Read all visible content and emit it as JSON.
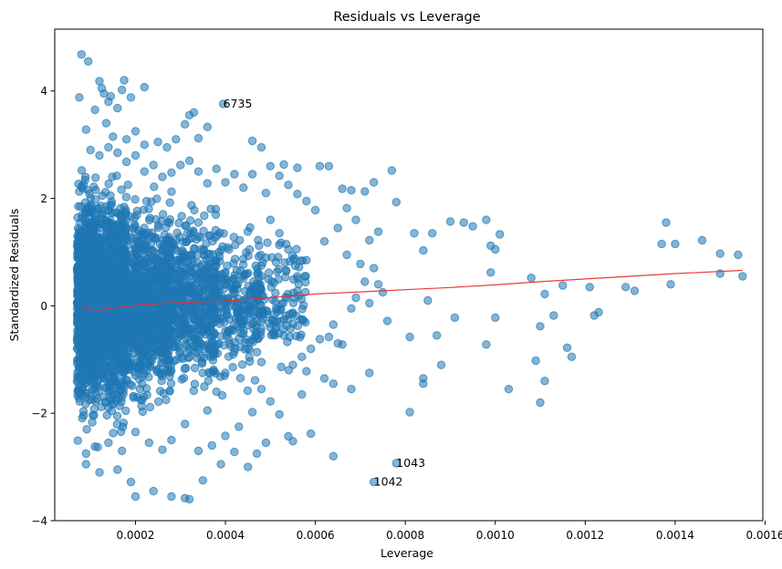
{
  "chart_data": {
    "type": "scatter",
    "title": "Residuals vs Leverage",
    "xlabel": "Leverage",
    "ylabel": "Standardized Residuals",
    "xlim": [
      2.05e-05,
      0.001595
    ],
    "ylim": [
      -4.0,
      5.15
    ],
    "xticks": [
      0.0002,
      0.0004,
      0.0006,
      0.0008,
      0.001,
      0.0012,
      0.0014,
      0.0016
    ],
    "xtick_labels": [
      "0.0002",
      "0.0004",
      "0.0006",
      "0.0008",
      "0.0010",
      "0.0012",
      "0.0014",
      "0.0016"
    ],
    "yticks": [
      -4,
      -2,
      0,
      2,
      4
    ],
    "ytick_labels": [
      "−4",
      "−2",
      "0",
      "2",
      "4"
    ],
    "grid": false,
    "legend": "none",
    "point_color": "#1f77b4",
    "point_alpha": 0.55,
    "line_color": "#e8302f",
    "points": [
      [
        8e-05,
        4.68
      ],
      [
        9.5e-05,
        4.55
      ],
      [
        7.5e-05,
        3.88
      ],
      [
        0.00012,
        4.18
      ],
      [
        0.000125,
        4.05
      ],
      [
        0.00013,
        3.95
      ],
      [
        0.000175,
        4.2
      ],
      [
        0.00017,
        4.02
      ],
      [
        0.00019,
        3.88
      ],
      [
        0.00022,
        4.07
      ],
      [
        0.000145,
        3.9
      ],
      [
        0.00016,
        3.68
      ],
      [
        0.00011,
        3.65
      ],
      [
        0.00014,
        3.8
      ],
      [
        0.000135,
        3.4
      ],
      [
        0.00033,
        3.6
      ],
      [
        0.00032,
        3.55
      ],
      [
        0.00036,
        3.33
      ],
      [
        0.000395,
        3.76
      ],
      [
        0.00034,
        3.12
      ],
      [
        0.00046,
        3.07
      ],
      [
        0.00031,
        3.38
      ],
      [
        0.00025,
        3.05
      ],
      [
        0.00029,
        3.1
      ],
      [
        0.00027,
        2.95
      ],
      [
        0.00022,
        3.0
      ],
      [
        0.00018,
        3.1
      ],
      [
        0.0002,
        3.25
      ],
      [
        0.00015,
        3.15
      ],
      [
        9e-05,
        3.28
      ],
      [
        0.00048,
        2.95
      ],
      [
        0.0005,
        2.6
      ],
      [
        0.00053,
        2.63
      ],
      [
        0.00056,
        2.57
      ],
      [
        0.00061,
        2.6
      ],
      [
        0.00063,
        2.6
      ],
      [
        0.00073,
        2.3
      ],
      [
        0.00077,
        2.52
      ],
      [
        0.00066,
        2.18
      ],
      [
        0.00068,
        2.15
      ],
      [
        0.00071,
        2.13
      ],
      [
        0.00067,
        1.82
      ],
      [
        0.00069,
        1.6
      ],
      [
        0.00074,
        1.38
      ],
      [
        0.00072,
        1.22
      ],
      [
        0.00078,
        1.93
      ],
      [
        0.00082,
        1.35
      ],
      [
        0.00084,
        1.03
      ],
      [
        0.00086,
        1.35
      ],
      [
        0.0009,
        1.57
      ],
      [
        0.00093,
        1.55
      ],
      [
        0.00095,
        1.48
      ],
      [
        0.00098,
        1.6
      ],
      [
        0.00101,
        1.33
      ],
      [
        0.00099,
        1.12
      ],
      [
        0.001,
        1.05
      ],
      [
        0.00099,
        0.62
      ],
      [
        0.00108,
        0.52
      ],
      [
        0.00111,
        0.22
      ],
      [
        0.00115,
        0.38
      ],
      [
        0.00121,
        0.35
      ],
      [
        0.00129,
        0.35
      ],
      [
        0.00131,
        0.28
      ],
      [
        0.00137,
        1.15
      ],
      [
        0.00138,
        1.55
      ],
      [
        0.0014,
        1.15
      ],
      [
        0.00146,
        1.22
      ],
      [
        0.0015,
        0.97
      ],
      [
        0.00154,
        0.95
      ],
      [
        0.00139,
        0.4
      ],
      [
        0.0015,
        0.6
      ],
      [
        0.00155,
        0.55
      ],
      [
        0.00085,
        0.1
      ],
      [
        0.00076,
        -0.28
      ],
      [
        0.00081,
        -0.58
      ],
      [
        0.00087,
        -0.55
      ],
      [
        0.00091,
        -0.22
      ],
      [
        0.001,
        -0.22
      ],
      [
        0.00098,
        -0.72
      ],
      [
        0.00103,
        -1.55
      ],
      [
        0.00109,
        -1.02
      ],
      [
        0.0011,
        -0.38
      ],
      [
        0.00113,
        -0.18
      ],
      [
        0.00116,
        -0.78
      ],
      [
        0.00117,
        -0.95
      ],
      [
        0.00123,
        -0.12
      ],
      [
        0.00122,
        -0.18
      ],
      [
        0.00111,
        -1.4
      ],
      [
        0.0011,
        -1.8
      ],
      [
        0.00084,
        -1.35
      ],
      [
        0.00084,
        -1.45
      ],
      [
        0.00088,
        -1.1
      ],
      [
        0.00081,
        -1.98
      ],
      [
        0.00072,
        -1.25
      ],
      [
        0.00068,
        -1.55
      ],
      [
        0.00064,
        -1.45
      ],
      [
        0.00062,
        -1.35
      ],
      [
        0.00058,
        -1.22
      ],
      [
        0.00057,
        -1.65
      ],
      [
        0.00065,
        -0.7
      ],
      [
        0.00066,
        -0.72
      ],
      [
        0.00063,
        -0.58
      ],
      [
        0.00078,
        -2.93
      ],
      [
        0.00073,
        -3.28
      ],
      [
        0.00064,
        -2.8
      ],
      [
        0.00059,
        -2.38
      ],
      [
        0.00055,
        -2.52
      ],
      [
        0.00054,
        -2.43
      ],
      [
        0.00049,
        -2.55
      ],
      [
        0.00047,
        -2.75
      ],
      [
        0.00045,
        -3.0
      ],
      [
        0.00042,
        -2.72
      ],
      [
        0.00039,
        -2.95
      ],
      [
        0.00035,
        -3.25
      ],
      [
        0.00032,
        -3.6
      ],
      [
        0.00031,
        -3.58
      ],
      [
        0.00028,
        -3.55
      ],
      [
        0.00024,
        -3.45
      ],
      [
        0.0002,
        -3.55
      ],
      [
        0.00019,
        -3.28
      ],
      [
        0.00016,
        -3.05
      ],
      [
        0.00012,
        -3.1
      ],
      [
        9e-05,
        -2.95
      ],
      [
        0.00052,
        -2.02
      ],
      [
        0.0005,
        -1.78
      ],
      [
        0.00048,
        -1.55
      ],
      [
        0.00046,
        -1.98
      ],
      [
        0.00043,
        -2.25
      ],
      [
        0.0004,
        -2.42
      ],
      [
        0.00037,
        -2.6
      ],
      [
        0.00034,
        -2.7
      ],
      [
        0.00031,
        -2.2
      ],
      [
        0.00028,
        -2.5
      ],
      [
        0.00026,
        -2.68
      ],
      [
        0.00023,
        -2.55
      ],
      [
        0.0002,
        -2.35
      ],
      [
        0.00017,
        -2.7
      ],
      [
        0.00014,
        -2.55
      ],
      [
        0.00011,
        -2.62
      ],
      [
        9e-05,
        -2.75
      ],
      [
        0.0006,
        1.78
      ],
      [
        0.00058,
        1.95
      ],
      [
        0.00056,
        2.08
      ],
      [
        0.00054,
        2.25
      ],
      [
        0.00052,
        2.42
      ],
      [
        0.00049,
        2.1
      ],
      [
        0.00046,
        2.45
      ],
      [
        0.00044,
        2.2
      ],
      [
        0.00042,
        2.45
      ],
      [
        0.0004,
        2.3
      ],
      [
        0.00038,
        2.55
      ],
      [
        0.00036,
        2.28
      ],
      [
        0.00034,
        2.5
      ],
      [
        0.00032,
        2.7
      ],
      [
        0.0003,
        2.62
      ],
      [
        0.00028,
        2.48
      ],
      [
        0.00026,
        2.4
      ],
      [
        0.00024,
        2.62
      ],
      [
        0.00022,
        2.5
      ],
      [
        0.0002,
        2.8
      ],
      [
        0.00018,
        2.68
      ],
      [
        0.00016,
        2.85
      ],
      [
        0.00014,
        2.95
      ],
      [
        0.00012,
        2.8
      ],
      [
        0.0001,
        2.9
      ],
      [
        0.00062,
        1.2
      ],
      [
        0.00065,
        1.45
      ],
      [
        0.00067,
        0.95
      ],
      [
        0.0007,
        0.78
      ],
      [
        0.00073,
        0.7
      ],
      [
        0.00071,
        0.45
      ],
      [
        0.00074,
        0.4
      ],
      [
        0.00069,
        0.15
      ],
      [
        0.00075,
        0.25
      ],
      [
        0.00072,
        0.05
      ],
      [
        0.00068,
        -0.05
      ],
      [
        0.00064,
        -0.35
      ],
      [
        0.00061,
        -0.62
      ],
      [
        0.00059,
        -0.8
      ],
      [
        0.00057,
        -0.95
      ],
      [
        0.00055,
        -1.1
      ],
      [
        0.00053,
        -0.55
      ],
      [
        0.00051,
        -0.3
      ],
      [
        0.00056,
        0.55
      ],
      [
        0.00058,
        0.85
      ],
      [
        0.00054,
        1.05
      ],
      [
        0.00052,
        1.35
      ],
      [
        0.0005,
        1.6
      ],
      [
        0.00048,
        0.75
      ],
      [
        0.00046,
        0.3
      ],
      [
        0.00044,
        -0.25
      ],
      [
        0.00042,
        -0.85
      ],
      [
        0.0004,
        -1.25
      ],
      [
        0.00038,
        -1.6
      ],
      [
        0.00036,
        -1.95
      ]
    ],
    "dense_regions": [
      {
        "x": [
          7e-05,
          0.00011
        ],
        "y": [
          -2.9,
          3.0
        ],
        "count": 900
      },
      {
        "x": [
          0.0001,
          0.00018
        ],
        "y": [
          -2.7,
          2.9
        ],
        "count": 1300
      },
      {
        "x": [
          0.00017,
          0.00028
        ],
        "y": [
          -2.5,
          2.6
        ],
        "count": 900
      },
      {
        "x": [
          0.00027,
          0.00038
        ],
        "y": [
          -2.2,
          2.4
        ],
        "count": 500
      },
      {
        "x": [
          0.00037,
          0.00048
        ],
        "y": [
          -1.9,
          2.1
        ],
        "count": 260
      },
      {
        "x": [
          0.00047,
          0.00058
        ],
        "y": [
          -1.6,
          1.9
        ],
        "count": 120
      }
    ],
    "lowess_line": {
      "x": [
        8e-05,
        0.0001,
        0.00012,
        0.00015,
        0.0002,
        0.00025,
        0.0003,
        0.0004,
        0.0005,
        0.0006,
        0.0007,
        0.0008,
        0.0009,
        0.001,
        0.0011,
        0.0012,
        0.0013,
        0.0014,
        0.0015,
        0.00155
      ],
      "y": [
        -0.02,
        -0.06,
        -0.08,
        -0.04,
        0.01,
        0.04,
        0.06,
        0.09,
        0.15,
        0.22,
        0.26,
        0.3,
        0.34,
        0.39,
        0.45,
        0.5,
        0.55,
        0.6,
        0.64,
        0.66
      ]
    },
    "annotations": [
      {
        "text": "6735",
        "x": 0.000395,
        "y": 3.76
      },
      {
        "text": "1043",
        "x": 0.00078,
        "y": -2.93
      },
      {
        "text": "1042",
        "x": 0.00073,
        "y": -3.28
      }
    ]
  }
}
